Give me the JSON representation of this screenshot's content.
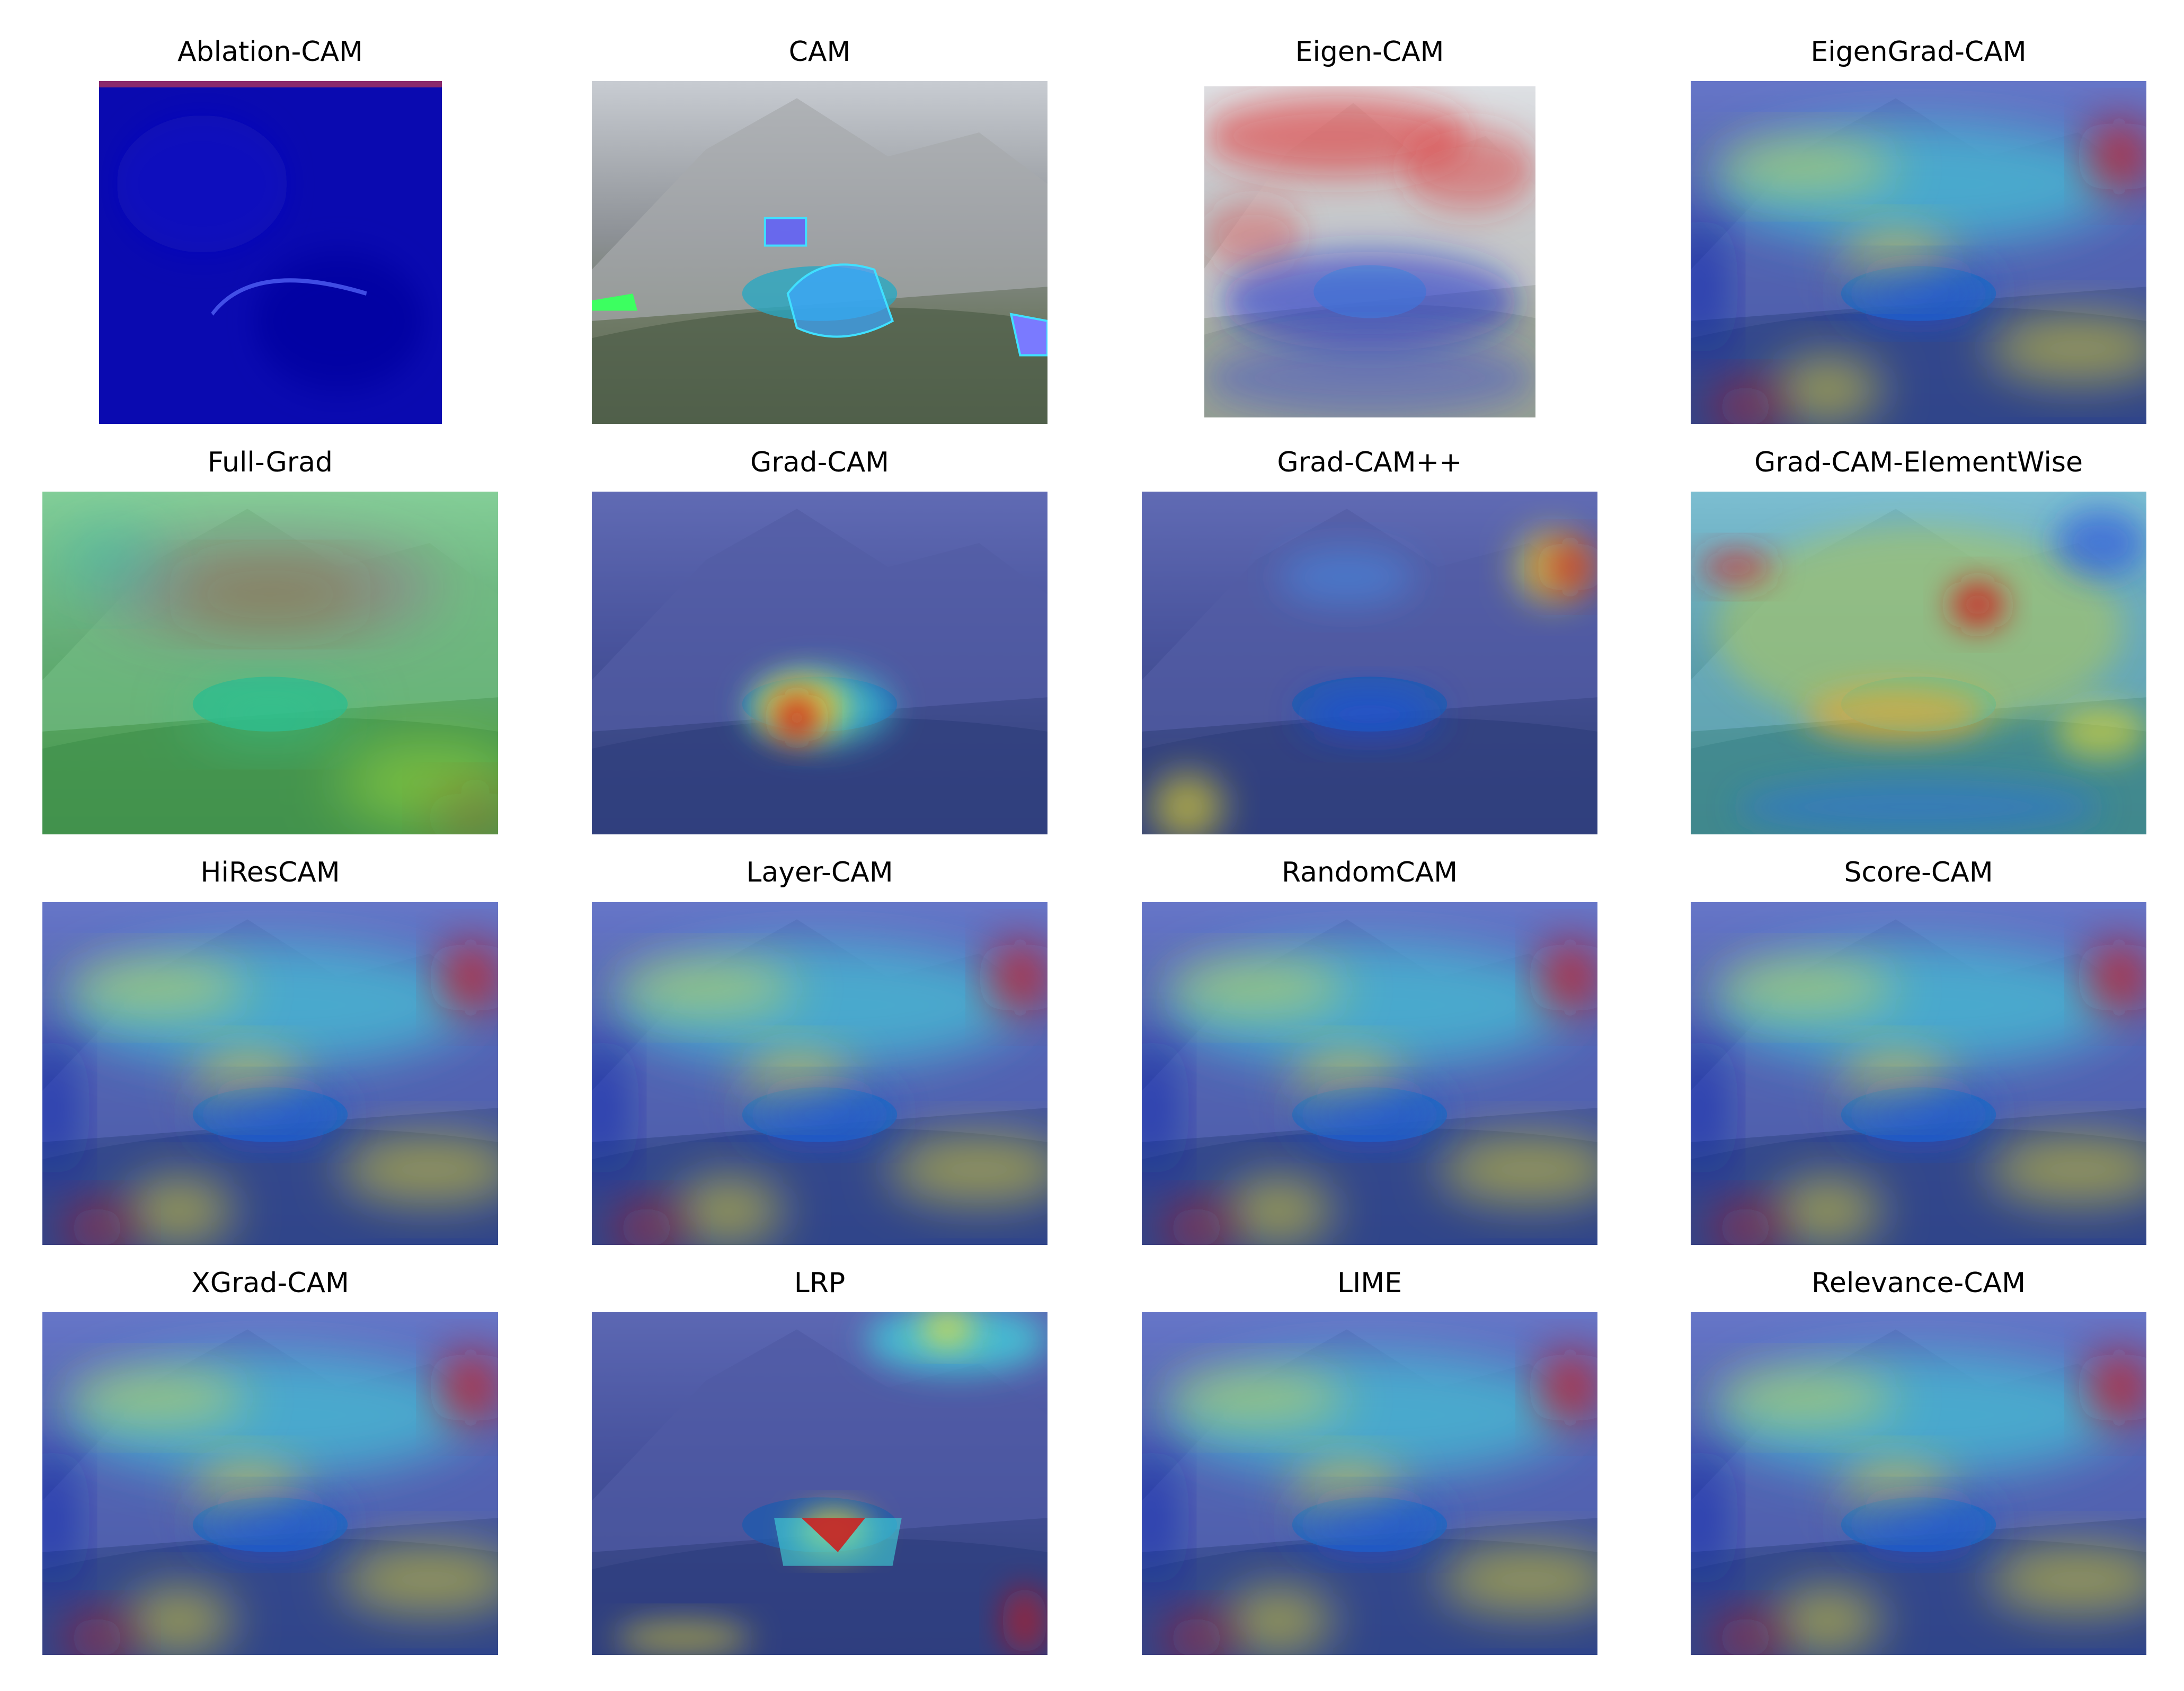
{
  "figure": {
    "panels": [
      {
        "id": "ablation-cam",
        "title": "Ablation-CAM",
        "style": "ablation"
      },
      {
        "id": "cam",
        "title": "CAM",
        "style": "cam"
      },
      {
        "id": "eigen-cam",
        "title": "Eigen-CAM",
        "style": "eigen"
      },
      {
        "id": "eigengrad-cam",
        "title": "EigenGrad-CAM",
        "style": "standard"
      },
      {
        "id": "full-grad",
        "title": "Full-Grad",
        "style": "fullgrad"
      },
      {
        "id": "grad-cam",
        "title": "Grad-CAM",
        "style": "gradcam"
      },
      {
        "id": "grad-cam-pp",
        "title": "Grad-CAM++",
        "style": "gradcampp"
      },
      {
        "id": "grad-cam-elementwise",
        "title": "Grad-CAM-ElementWise",
        "style": "elementwise"
      },
      {
        "id": "hirescam",
        "title": "HiResCAM",
        "style": "standard"
      },
      {
        "id": "layer-cam",
        "title": "Layer-CAM",
        "style": "standard"
      },
      {
        "id": "randomcam",
        "title": "RandomCAM",
        "style": "standard"
      },
      {
        "id": "score-cam",
        "title": "Score-CAM",
        "style": "standard"
      },
      {
        "id": "xgrad-cam",
        "title": "XGrad-CAM",
        "style": "standard"
      },
      {
        "id": "lrp",
        "title": "LRP",
        "style": "lrp"
      },
      {
        "id": "lime",
        "title": "LIME",
        "style": "standard"
      },
      {
        "id": "relevance-cam",
        "title": "Relevance-CAM",
        "style": "standard"
      }
    ],
    "colors": {
      "jet_dark_blue": "#0a1bb0",
      "jet_cyan": "#40e0e0",
      "jet_yellow": "#f5e52a",
      "jet_red": "#d01818",
      "mountain_gray": "#9a9ea3",
      "lake_teal": "#2aa7c2"
    }
  }
}
